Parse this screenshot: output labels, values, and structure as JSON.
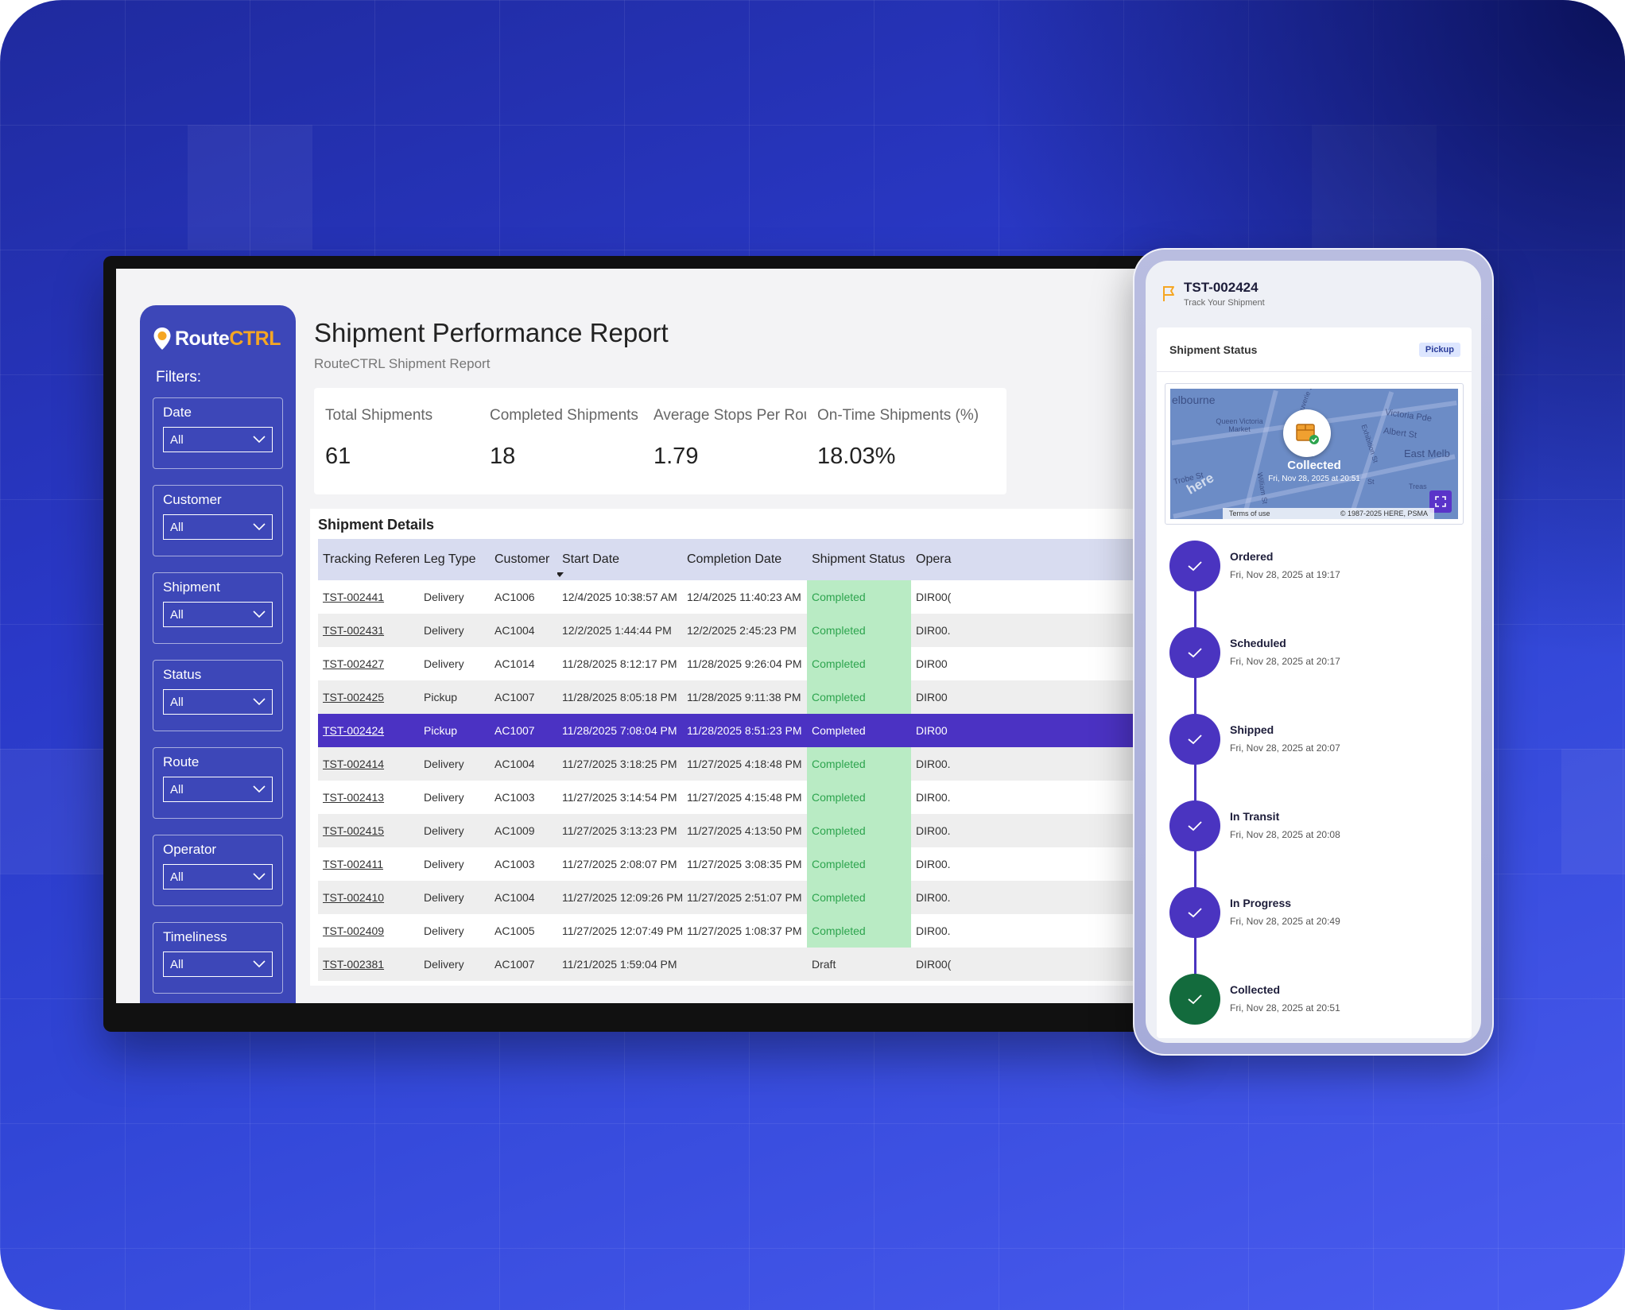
{
  "app": {
    "logo_main": "Route",
    "logo_accent": "CTRL",
    "filters_label": "Filters:"
  },
  "filters": [
    {
      "label": "Date",
      "value": "All"
    },
    {
      "label": "Customer",
      "value": "All"
    },
    {
      "label": "Shipment",
      "value": "All"
    },
    {
      "label": "Status",
      "value": "All"
    },
    {
      "label": "Route",
      "value": "All"
    },
    {
      "label": "Operator",
      "value": "All"
    },
    {
      "label": "Timeliness",
      "value": "All"
    }
  ],
  "report": {
    "title": "Shipment Performance Report",
    "subtitle": "RouteCTRL Shipment Report"
  },
  "kpis": [
    {
      "label": "Total Shipments",
      "value": "61"
    },
    {
      "label": "Completed Shipments",
      "value": "18"
    },
    {
      "label": "Average Stops Per Route",
      "value": "1.79"
    },
    {
      "label": "On-Time Shipments (%)",
      "value": "18.03%"
    }
  ],
  "table": {
    "title": "Shipment Details",
    "columns": [
      "Tracking Reference",
      "Leg Type",
      "Customer",
      "Start Date",
      "Completion Date",
      "Shipment Status",
      "Opera"
    ],
    "rows": [
      {
        "ref": "TST-002441",
        "leg": "Delivery",
        "customer": "AC1006",
        "start": "12/4/2025 10:38:57 AM",
        "completion": "12/4/2025 11:40:23 AM",
        "status": "Completed",
        "operator": "DIR00("
      },
      {
        "ref": "TST-002431",
        "leg": "Delivery",
        "customer": "AC1004",
        "start": "12/2/2025 1:44:44 PM",
        "completion": "12/2/2025 2:45:23 PM",
        "status": "Completed",
        "operator": "DIR00."
      },
      {
        "ref": "TST-002427",
        "leg": "Delivery",
        "customer": "AC1014",
        "start": "11/28/2025 8:12:17 PM",
        "completion": "11/28/2025 9:26:04 PM",
        "status": "Completed",
        "operator": "DIR00"
      },
      {
        "ref": "TST-002425",
        "leg": "Pickup",
        "customer": "AC1007",
        "start": "11/28/2025 8:05:18 PM",
        "completion": "11/28/2025 9:11:38 PM",
        "status": "Completed",
        "operator": "DIR00"
      },
      {
        "ref": "TST-002424",
        "leg": "Pickup",
        "customer": "AC1007",
        "start": "11/28/2025 7:08:04 PM",
        "completion": "11/28/2025 8:51:23 PM",
        "status": "Completed",
        "operator": "DIR00",
        "selected": true
      },
      {
        "ref": "TST-002414",
        "leg": "Delivery",
        "customer": "AC1004",
        "start": "11/27/2025 3:18:25 PM",
        "completion": "11/27/2025 4:18:48 PM",
        "status": "Completed",
        "operator": "DIR00."
      },
      {
        "ref": "TST-002413",
        "leg": "Delivery",
        "customer": "AC1003",
        "start": "11/27/2025 3:14:54 PM",
        "completion": "11/27/2025 4:15:48 PM",
        "status": "Completed",
        "operator": "DIR00."
      },
      {
        "ref": "TST-002415",
        "leg": "Delivery",
        "customer": "AC1009",
        "start": "11/27/2025 3:13:23 PM",
        "completion": "11/27/2025 4:13:50 PM",
        "status": "Completed",
        "operator": "DIR00."
      },
      {
        "ref": "TST-002411",
        "leg": "Delivery",
        "customer": "AC1003",
        "start": "11/27/2025 2:08:07 PM",
        "completion": "11/27/2025 3:08:35 PM",
        "status": "Completed",
        "operator": "DIR00."
      },
      {
        "ref": "TST-002410",
        "leg": "Delivery",
        "customer": "AC1004",
        "start": "11/27/2025 12:09:26 PM",
        "completion": "11/27/2025 2:51:07 PM",
        "status": "Completed",
        "operator": "DIR00."
      },
      {
        "ref": "TST-002409",
        "leg": "Delivery",
        "customer": "AC1005",
        "start": "11/27/2025 12:07:49 PM",
        "completion": "11/27/2025 1:08:37 PM",
        "status": "Completed",
        "operator": "DIR00."
      },
      {
        "ref": "TST-002381",
        "leg": "Delivery",
        "customer": "AC1007",
        "start": "11/21/2025 1:59:04 PM",
        "completion": "",
        "status": "Draft",
        "operator": "DIR00("
      }
    ]
  },
  "tracker": {
    "id": "TST-002424",
    "subtitle": "Track Your Shipment",
    "card_title": "Shipment Status",
    "badge": "Pickup",
    "map": {
      "labels": [
        "elbourne",
        "Queen Victoria Market",
        "Bouverie St",
        "Victoria Pde",
        "Albert St",
        "East Melb",
        "Trobe St",
        "William St",
        "Exhibition St",
        "Treas",
        "St"
      ],
      "logo": "here",
      "status": "Collected",
      "time": "Fri, Nov 28, 2025 at 20:51",
      "terms": "Terms of use",
      "copyright": "© 1987-2025 HERE, PSMA"
    },
    "steps": [
      {
        "title": "Ordered",
        "time": "Fri, Nov 28, 2025 at 19:17"
      },
      {
        "title": "Scheduled",
        "time": "Fri, Nov 28, 2025 at 20:17"
      },
      {
        "title": "Shipped",
        "time": "Fri, Nov 28, 2025 at 20:07"
      },
      {
        "title": "In Transit",
        "time": "Fri, Nov 28, 2025 at 20:08"
      },
      {
        "title": "In Progress",
        "time": "Fri, Nov 28, 2025 at 20:49"
      },
      {
        "title": "Collected",
        "time": "Fri, Nov 28, 2025 at 20:51"
      }
    ]
  },
  "colors": {
    "brand": "#3d47b8",
    "accent": "#f5a623",
    "selected_row": "#4b32c3",
    "completed_bg": "#b9ebc4",
    "completed_text": "#2da44e",
    "timeline": "#4a34c0",
    "timeline_done": "#136b3d"
  }
}
